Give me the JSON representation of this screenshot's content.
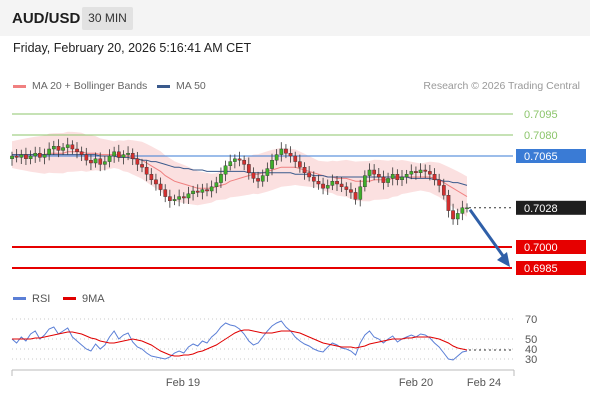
{
  "header": {
    "symbol": "AUD/USD",
    "interval": "30 MIN",
    "timestamp": "Friday, February 20, 2026 5:16:41 AM CET"
  },
  "legend": {
    "ma20_label": "MA 20 + Bollinger Bands",
    "ma20_color": "#f08080",
    "ma50_label": "MA 50",
    "ma50_color": "#3a5a8c",
    "credit": "Research © 2026 Trading Central"
  },
  "colors": {
    "bull": "#3fae2a",
    "bear": "#d32f2f",
    "resistance": "#8cc56b",
    "pivot": "#3a7bd5",
    "support": "#e60000",
    "arrow": "#2f5fa8"
  },
  "chart_data": [
    {
      "type": "candlestick",
      "title": "AUD/USD 30 MIN",
      "ylim": [
        0.6975,
        0.7105
      ],
      "x_ticks": [
        "Feb 19",
        "Feb 20",
        "Feb 24"
      ],
      "levels": [
        {
          "value": 0.7095,
          "label": "0.7095",
          "kind": "resistance"
        },
        {
          "value": 0.708,
          "label": "0.7080",
          "kind": "resistance"
        },
        {
          "value": 0.7065,
          "label": "0.7065",
          "kind": "pivot"
        },
        {
          "value": 0.7028,
          "label": "0.7028",
          "kind": "last"
        },
        {
          "value": 0.7,
          "label": "0.7000",
          "kind": "support"
        },
        {
          "value": 0.6985,
          "label": "0.6985",
          "kind": "support"
        }
      ],
      "close": [
        0.7065,
        0.7064,
        0.7066,
        0.7063,
        0.7065,
        0.7067,
        0.7064,
        0.7066,
        0.707,
        0.7072,
        0.7069,
        0.7071,
        0.7073,
        0.707,
        0.7068,
        0.7066,
        0.7062,
        0.706,
        0.7063,
        0.7059,
        0.7061,
        0.7065,
        0.7068,
        0.7064,
        0.7066,
        0.7067,
        0.7063,
        0.7059,
        0.7057,
        0.7052,
        0.7048,
        0.7045,
        0.7041,
        0.7036,
        0.7033,
        0.7034,
        0.7036,
        0.7035,
        0.7038,
        0.704,
        0.7039,
        0.7041,
        0.704,
        0.7043,
        0.7046,
        0.7052,
        0.7058,
        0.7061,
        0.7063,
        0.7062,
        0.7059,
        0.7053,
        0.7049,
        0.7047,
        0.7051,
        0.7056,
        0.7062,
        0.7066,
        0.707,
        0.7067,
        0.7065,
        0.7061,
        0.7057,
        0.7053,
        0.705,
        0.7047,
        0.7045,
        0.7042,
        0.7044,
        0.7047,
        0.7045,
        0.7043,
        0.7041,
        0.7039,
        0.7034,
        0.7043,
        0.7051,
        0.7055,
        0.7052,
        0.705,
        0.7046,
        0.7049,
        0.7052,
        0.7048,
        0.705,
        0.7052,
        0.7054,
        0.7053,
        0.7055,
        0.7054,
        0.7052,
        0.7048,
        0.7044,
        0.7037,
        0.7026,
        0.702,
        0.7024,
        0.7028,
        0.7028
      ],
      "ma20": [
        0.7066,
        0.7066,
        0.7066,
        0.7066,
        0.7066,
        0.7066,
        0.7066,
        0.7066,
        0.7067,
        0.7067,
        0.7067,
        0.7067,
        0.7068,
        0.7068,
        0.7068,
        0.7068,
        0.7067,
        0.7067,
        0.7067,
        0.7066,
        0.7066,
        0.7066,
        0.7066,
        0.7066,
        0.7065,
        0.7065,
        0.7064,
        0.7063,
        0.7062,
        0.706,
        0.7058,
        0.7056,
        0.7054,
        0.7051,
        0.7049,
        0.7047,
        0.7046,
        0.7045,
        0.7044,
        0.7043,
        0.7042,
        0.7042,
        0.7042,
        0.7042,
        0.7043,
        0.7044,
        0.7045,
        0.7047,
        0.7048,
        0.7049,
        0.705,
        0.7051,
        0.7052,
        0.7052,
        0.7053,
        0.7054,
        0.7055,
        0.7056,
        0.7057,
        0.7057,
        0.7057,
        0.7057,
        0.7056,
        0.7055,
        0.7054,
        0.7053,
        0.7052,
        0.7051,
        0.705,
        0.705,
        0.7049,
        0.7049,
        0.7049,
        0.7048,
        0.7047,
        0.7047,
        0.7047,
        0.7047,
        0.7048,
        0.7048,
        0.7048,
        0.7048,
        0.7049,
        0.7049,
        0.705,
        0.705,
        0.705,
        0.705,
        0.705,
        0.705,
        0.705,
        0.7049,
        0.7048,
        0.7046,
        0.7044,
        0.7042,
        0.704,
        0.7038,
        0.7036
      ],
      "ma50": [
        0.7066,
        0.7066,
        0.7066,
        0.7066,
        0.7066,
        0.7066,
        0.7066,
        0.7066,
        0.7066,
        0.7066,
        0.7066,
        0.7066,
        0.7066,
        0.7066,
        0.7066,
        0.7066,
        0.7066,
        0.7066,
        0.7066,
        0.7065,
        0.7065,
        0.7065,
        0.7065,
        0.7064,
        0.7064,
        0.7064,
        0.7063,
        0.7063,
        0.7062,
        0.7062,
        0.7061,
        0.7061,
        0.706,
        0.7059,
        0.7058,
        0.7057,
        0.7057,
        0.7056,
        0.7056,
        0.7055,
        0.7055,
        0.7055,
        0.7054,
        0.7054,
        0.7054,
        0.7054,
        0.7054,
        0.7054,
        0.7054,
        0.7054,
        0.7054,
        0.7053,
        0.7053,
        0.7053,
        0.7053,
        0.7053,
        0.7053,
        0.7053,
        0.7053,
        0.7053,
        0.7053,
        0.7052,
        0.7052,
        0.7052,
        0.7052,
        0.7051,
        0.7051,
        0.7051,
        0.705,
        0.705,
        0.705,
        0.705,
        0.705,
        0.705,
        0.705,
        0.705,
        0.705,
        0.705,
        0.705,
        0.705,
        0.705,
        0.705,
        0.705,
        0.705,
        0.705,
        0.705,
        0.7049,
        0.7049,
        0.7049,
        0.7049,
        0.7049,
        0.7048,
        0.7048,
        0.7047,
        0.7047,
        0.7046,
        0.7046,
        0.7045,
        0.7044
      ],
      "bb_width": 0.0012,
      "forecast": {
        "from": 0.7028,
        "to": 0.6985
      }
    },
    {
      "type": "line",
      "legend": [
        "RSI",
        "9MA"
      ],
      "rsi_color": "#5b7fd6",
      "ma_color": "#e00000",
      "ylim": [
        25,
        75
      ],
      "y_ticks": [
        70,
        50,
        40,
        30
      ],
      "rsi": [
        50,
        46,
        52,
        48,
        55,
        58,
        50,
        54,
        60,
        62,
        55,
        58,
        61,
        52,
        48,
        44,
        40,
        38,
        45,
        40,
        44,
        52,
        58,
        50,
        54,
        56,
        47,
        42,
        40,
        36,
        33,
        32,
        31,
        30,
        32,
        36,
        38,
        36,
        42,
        45,
        43,
        48,
        46,
        52,
        56,
        62,
        66,
        64,
        63,
        60,
        55,
        48,
        44,
        46,
        52,
        58,
        63,
        66,
        68,
        62,
        58,
        52,
        48,
        45,
        43,
        40,
        38,
        37,
        42,
        46,
        44,
        41,
        40,
        38,
        34,
        46,
        54,
        58,
        52,
        50,
        46,
        50,
        53,
        47,
        50,
        52,
        54,
        52,
        55,
        54,
        51,
        46,
        42,
        36,
        30,
        29,
        33,
        37,
        38
      ],
      "ma9": [
        50,
        50,
        50,
        50,
        50,
        51,
        51,
        52,
        53,
        54,
        55,
        56,
        57,
        57,
        56,
        55,
        53,
        51,
        50,
        48,
        47,
        46,
        46,
        47,
        48,
        49,
        50,
        49,
        48,
        46,
        44,
        41,
        38,
        36,
        34,
        33,
        33,
        34,
        34,
        35,
        37,
        38,
        40,
        42,
        44,
        47,
        50,
        53,
        56,
        58,
        59,
        59,
        58,
        57,
        56,
        56,
        56,
        57,
        58,
        58,
        58,
        57,
        56,
        54,
        52,
        50,
        48,
        46,
        45,
        44,
        43,
        42,
        42,
        42,
        41,
        42,
        43,
        45,
        46,
        47,
        48,
        49,
        50,
        50,
        50,
        51,
        51,
        52,
        52,
        52,
        52,
        51,
        50,
        48,
        46,
        43,
        41,
        40,
        39
      ]
    }
  ]
}
